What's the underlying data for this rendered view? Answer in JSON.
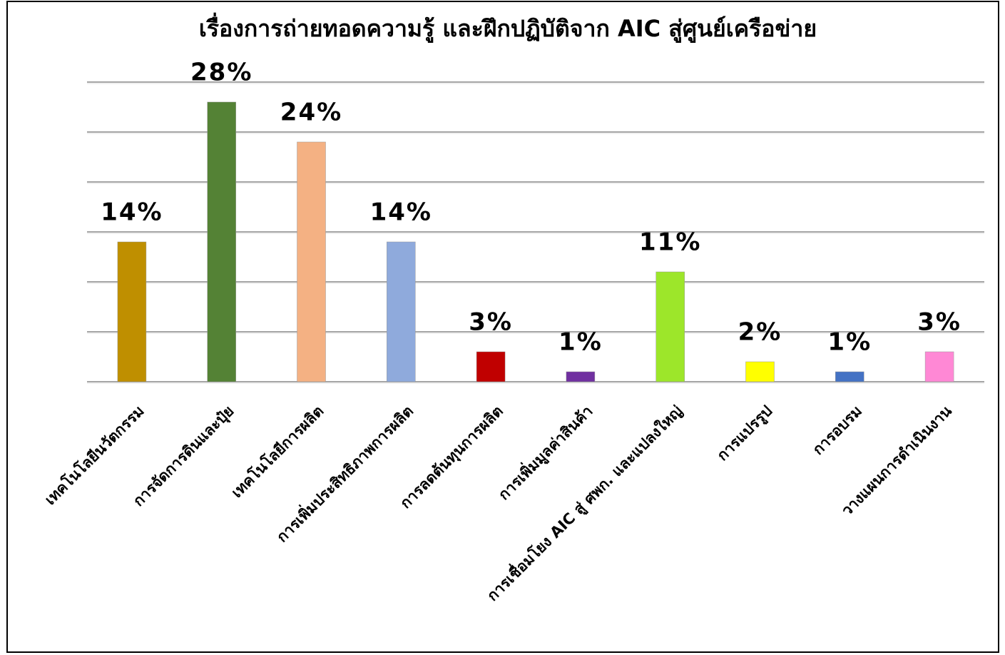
{
  "chart_data": {
    "type": "bar",
    "title": "เรื่องการถ่ายทอดความรู้ และฝึกปฏิบัติจาก AIC สู่ศูนย์เครือข่าย",
    "categories": [
      "เทคโนโลยีนวัตกรรม",
      "การจัดการดินและปุ๋ย",
      "เทคโนโลยีการผลิต",
      "การเพิ่มประสิทธิภาพการผลิต",
      "การลดต้นทุนการผลิต",
      "การเพิ่มมูลค่าสินค้า",
      "การเชื่อมโยง AIC สู่ ศพก. และแปลงใหญ่",
      "การแปรรูป",
      "การอบรม",
      "วางแผนการดำเนินงาน"
    ],
    "values": [
      14,
      28,
      24,
      14,
      3,
      1,
      11,
      2,
      1,
      3
    ],
    "value_labels": [
      "14%",
      "28%",
      "24%",
      "14%",
      "3%",
      "1%",
      "11%",
      "2%",
      "1%",
      "3%"
    ],
    "colors": [
      "#bf8f00",
      "#548235",
      "#f4b183",
      "#8faadc",
      "#c00000",
      "#7030a0",
      "#9de62a",
      "#ffff00",
      "#4472c4",
      "#ff88d5"
    ],
    "ylim": [
      0,
      30
    ],
    "yticks": [
      0,
      5,
      10,
      15,
      20,
      25,
      30
    ],
    "grid": true
  }
}
